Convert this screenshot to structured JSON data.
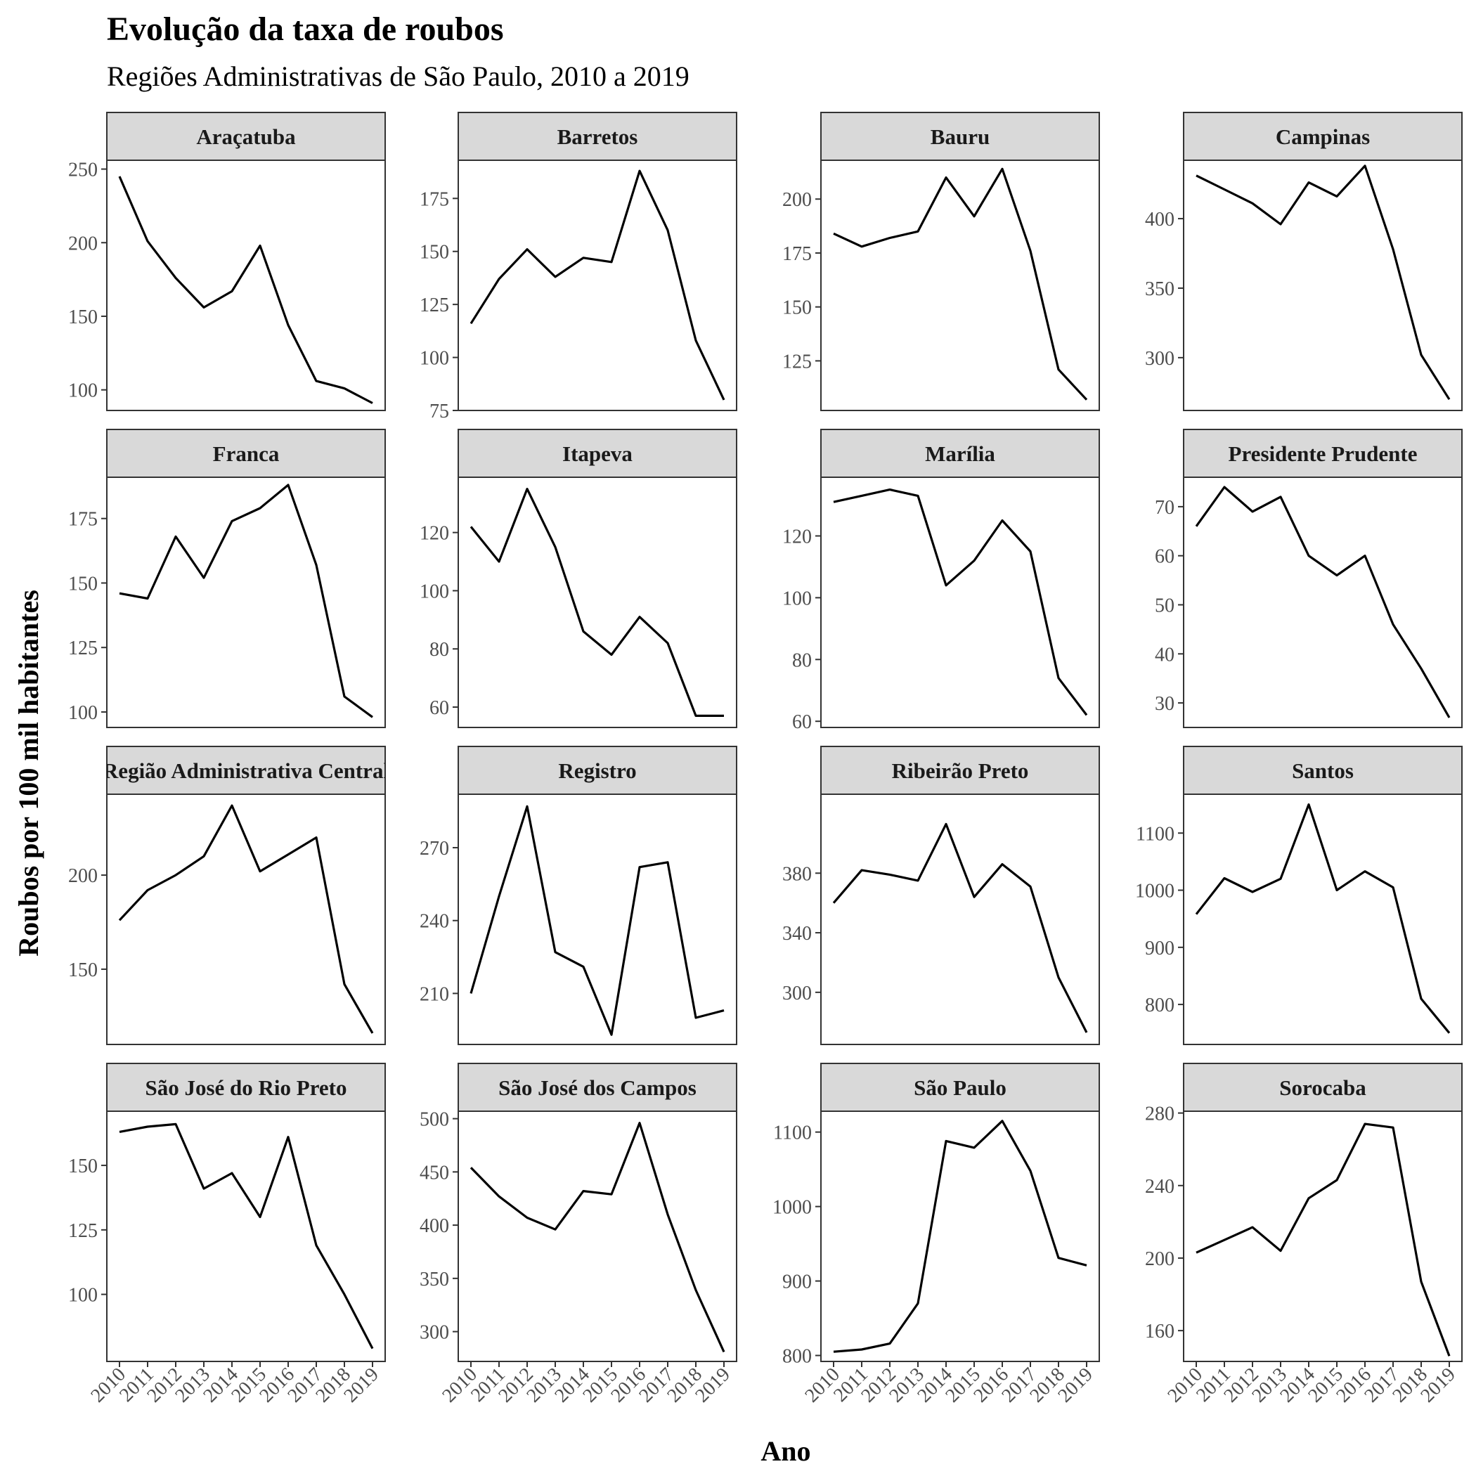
{
  "chart_data": {
    "type": "line",
    "layout": "facet-grid-4x4",
    "title": "Evolução da taxa de roubos",
    "subtitle": "Regiões Administrativas de São Paulo, 2010 a 2019",
    "xlabel": "Ano",
    "ylabel": "Roubos por 100 mil habitantes",
    "x": [
      2010,
      2011,
      2012,
      2013,
      2014,
      2015,
      2016,
      2017,
      2018,
      2019
    ],
    "line_color": "#000000",
    "strip_color": "#d9d9d9",
    "grid": false,
    "series": [
      {
        "name": "Araçatuba",
        "ylim": [
          86,
          256
        ],
        "yticks": [
          100,
          150,
          200,
          250
        ],
        "values": [
          245,
          201,
          176,
          156,
          167,
          198,
          144,
          106,
          101,
          91
        ]
      },
      {
        "name": "Barretos",
        "ylim": [
          75,
          193
        ],
        "yticks": [
          75,
          100,
          125,
          150,
          175
        ],
        "values": [
          116,
          137,
          151,
          138,
          147,
          145,
          188,
          160,
          108,
          80
        ]
      },
      {
        "name": "Bauru",
        "ylim": [
          102,
          218
        ],
        "yticks": [
          125,
          150,
          175,
          200
        ],
        "values": [
          184,
          178,
          182,
          185,
          210,
          192,
          214,
          176,
          121,
          107
        ]
      },
      {
        "name": "Campinas",
        "ylim": [
          262,
          442
        ],
        "yticks": [
          300,
          350,
          400
        ],
        "values": [
          431,
          421,
          411,
          396,
          426,
          416,
          438,
          378,
          302,
          270
        ]
      },
      {
        "name": "Franca",
        "ylim": [
          94,
          191
        ],
        "yticks": [
          100,
          125,
          150,
          175
        ],
        "values": [
          146,
          144,
          168,
          152,
          174,
          179,
          188,
          157,
          106,
          98
        ]
      },
      {
        "name": "Itapeva",
        "ylim": [
          53,
          139
        ],
        "yticks": [
          60,
          80,
          100,
          120
        ],
        "values": [
          122,
          110,
          135,
          115,
          86,
          78,
          91,
          82,
          57,
          57
        ]
      },
      {
        "name": "Marília",
        "ylim": [
          58,
          139
        ],
        "yticks": [
          60,
          80,
          100,
          120
        ],
        "values": [
          131,
          133,
          135,
          133,
          104,
          112,
          125,
          115,
          74,
          62
        ]
      },
      {
        "name": "Presidente Prudente",
        "ylim": [
          25,
          76
        ],
        "yticks": [
          30,
          40,
          50,
          60,
          70
        ],
        "values": [
          66,
          74,
          69,
          72,
          60,
          56,
          60,
          46,
          37,
          27
        ]
      },
      {
        "name": "Região Administrativa Central",
        "ylim": [
          110,
          243
        ],
        "yticks": [
          150,
          200
        ],
        "values": [
          176,
          192,
          200,
          210,
          237,
          202,
          211,
          220,
          142,
          116
        ]
      },
      {
        "name": "Registro",
        "ylim": [
          189,
          292
        ],
        "yticks": [
          210,
          240,
          270
        ],
        "values": [
          210,
          250,
          287,
          227,
          221,
          193,
          262,
          264,
          200,
          203
        ]
      },
      {
        "name": "Ribeirão Preto",
        "ylim": [
          265,
          433
        ],
        "yticks": [
          300,
          340,
          380
        ],
        "values": [
          360,
          382,
          379,
          375,
          413,
          364,
          386,
          371,
          310,
          273
        ]
      },
      {
        "name": "Santos",
        "ylim": [
          730,
          1168
        ],
        "yticks": [
          800,
          900,
          1000,
          1100
        ],
        "values": [
          958,
          1021,
          997,
          1020,
          1150,
          1000,
          1033,
          1005,
          810,
          750
        ]
      },
      {
        "name": "São José do Rio Preto",
        "ylim": [
          74,
          171
        ],
        "yticks": [
          100,
          125,
          150
        ],
        "values": [
          163,
          165,
          166,
          141,
          147,
          130,
          161,
          119,
          100,
          79
        ]
      },
      {
        "name": "São José dos Campos",
        "ylim": [
          272,
          507
        ],
        "yticks": [
          300,
          350,
          400,
          450,
          500
        ],
        "values": [
          454,
          427,
          407,
          396,
          432,
          429,
          496,
          410,
          339,
          281
        ]
      },
      {
        "name": "São Paulo",
        "ylim": [
          792,
          1128
        ],
        "yticks": [
          800,
          900,
          1000,
          1100
        ],
        "values": [
          805,
          808,
          816,
          870,
          1088,
          1079,
          1115,
          1048,
          931,
          921
        ]
      },
      {
        "name": "Sorocaba",
        "ylim": [
          143,
          281
        ],
        "yticks": [
          160,
          200,
          240,
          280
        ],
        "values": [
          203,
          210,
          217,
          204,
          233,
          243,
          274,
          272,
          187,
          146
        ]
      }
    ]
  }
}
